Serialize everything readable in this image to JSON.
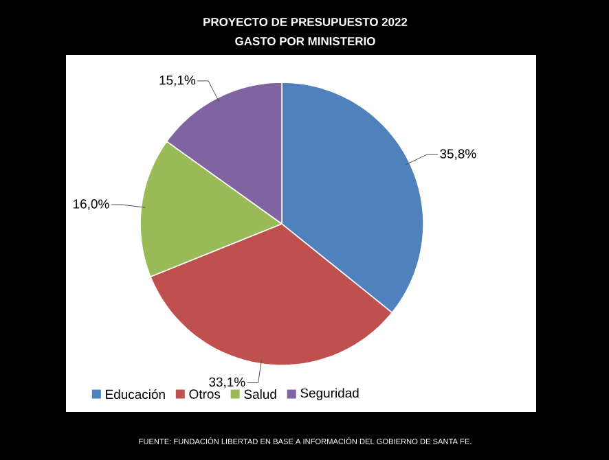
{
  "chart_data": {
    "type": "pie",
    "title": "PROYECTO  DE PRESUPUESTO  2022",
    "subtitle": "GASTO POR MINISTERIO",
    "categories": [
      "Educación",
      "Otros",
      "Salud",
      "Seguridad"
    ],
    "values": [
      35.8,
      33.1,
      16.0,
      15.1
    ],
    "value_labels": [
      "35,8%",
      "33,1%",
      "16,0%",
      "15,1%"
    ],
    "colors": [
      "#4f81bd",
      "#c0504d",
      "#9bbb59",
      "#8064a2"
    ],
    "legend": "bottom",
    "annotations": [
      "FUENTE: FUNDACIÓN LIBERTAD EN BASE A INFORMACIÓN DEL GOBIERNO DE SANTA FE."
    ]
  }
}
